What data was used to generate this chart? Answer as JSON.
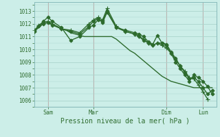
{
  "bg_color": "#cceee8",
  "grid_color": "#aad4cc",
  "line_color": "#2d6b2d",
  "xlabel": "Pression niveau de la mer( hPa )",
  "ylim": [
    1005.5,
    1013.7
  ],
  "yticks": [
    1006,
    1007,
    1008,
    1009,
    1010,
    1011,
    1012,
    1013
  ],
  "xlim": [
    0,
    20
  ],
  "vline_positions": [
    1.5,
    6.5,
    14.5,
    18.5
  ],
  "xtick_positions": [
    1.5,
    6.5,
    14.5,
    18.5
  ],
  "xtick_labels": [
    "Sam",
    "Mar",
    "Dim",
    "Lun"
  ],
  "series": [
    {
      "x": [
        0,
        0.5,
        1,
        1.5,
        2,
        2.5,
        3,
        3.5,
        4,
        4.5,
        5,
        5.5,
        6,
        6.5,
        7,
        7.5,
        8,
        8.5,
        9,
        9.5,
        10,
        10.5,
        11,
        11.5,
        12,
        12.5,
        13,
        13.5,
        14,
        14.5,
        15,
        15.5,
        16,
        16.5,
        17,
        17.5,
        18,
        18.5,
        19,
        19.5
      ],
      "y": [
        1011.4,
        1011.7,
        1012.0,
        1012.1,
        1011.9,
        1011.8,
        1011.6,
        1011.5,
        1011.3,
        1011.2,
        1011.1,
        1011.0,
        1011.0,
        1011.0,
        1011.0,
        1011.0,
        1011.0,
        1011.0,
        1010.8,
        1010.5,
        1010.2,
        1009.9,
        1009.7,
        1009.4,
        1009.1,
        1008.8,
        1008.5,
        1008.2,
        1007.9,
        1007.7,
        1007.5,
        1007.4,
        1007.3,
        1007.2,
        1007.1,
        1007.0,
        1007.0,
        1007.0,
        1007.0,
        1007.0
      ],
      "marker": null,
      "linewidth": 1.0
    },
    {
      "x": [
        0,
        0.5,
        1,
        1.5,
        2,
        3,
        4,
        5,
        6,
        6.5,
        7,
        7.5,
        8,
        9,
        10,
        11,
        11.5,
        12,
        12.5,
        13,
        13.5,
        14,
        14.5,
        15,
        15.5,
        16,
        16.5,
        17,
        17.5,
        18,
        18.5,
        19,
        19.5
      ],
      "y": [
        1011.4,
        1011.8,
        1012.2,
        1012.5,
        1012.2,
        1011.7,
        1010.7,
        1011.0,
        1011.7,
        1011.9,
        1012.3,
        1012.2,
        1013.0,
        1011.7,
        1011.5,
        1011.3,
        1011.2,
        1011.0,
        1010.6,
        1010.4,
        1011.1,
        1010.5,
        1010.3,
        1009.7,
        1009.0,
        1008.5,
        1008.0,
        1007.5,
        1008.0,
        1007.8,
        1007.5,
        1007.1,
        1006.5
      ],
      "marker": "D",
      "markersize": 2.5,
      "linewidth": 1.0
    },
    {
      "x": [
        0,
        0.5,
        1,
        1.5,
        2,
        3,
        4,
        5,
        6,
        6.5,
        7,
        7.5,
        8,
        9,
        10,
        11,
        11.5,
        12,
        12.5,
        13,
        13.5,
        14,
        14.5,
        15,
        15.5,
        16,
        16.5,
        17,
        17.5,
        18,
        18.5,
        19
      ],
      "y": [
        1011.4,
        1011.9,
        1012.1,
        1012.2,
        1012.0,
        1011.6,
        1011.5,
        1011.3,
        1012.0,
        1012.3,
        1012.5,
        1012.3,
        1013.2,
        1011.8,
        1011.4,
        1011.2,
        1011.0,
        1010.8,
        1010.5,
        1010.3,
        1010.5,
        1010.3,
        1010.1,
        1009.7,
        1009.2,
        1008.7,
        1008.3,
        1007.8,
        1007.7,
        1007.2,
        1006.7,
        1006.1
      ],
      "marker": "+",
      "markersize": 5,
      "linewidth": 1.0
    },
    {
      "x": [
        0,
        0.5,
        1,
        1.5,
        2,
        3,
        4,
        5,
        6,
        6.5,
        7,
        7.5,
        8,
        9,
        10,
        11,
        11.5,
        12,
        12.5,
        13,
        13.5,
        14,
        14.5,
        15,
        15.5,
        16,
        16.5,
        17,
        17.5,
        18,
        18.5,
        19,
        19.5
      ],
      "y": [
        1011.5,
        1011.8,
        1012.0,
        1012.1,
        1011.9,
        1011.6,
        1011.4,
        1011.2,
        1011.8,
        1012.2,
        1012.4,
        1012.1,
        1012.9,
        1011.7,
        1011.4,
        1011.2,
        1011.0,
        1010.7,
        1010.5,
        1010.3,
        1010.5,
        1010.5,
        1010.4,
        1009.8,
        1009.3,
        1008.7,
        1008.2,
        1007.7,
        1007.8,
        1007.5,
        1007.0,
        1006.5,
        1006.8
      ],
      "marker": "D",
      "markersize": 2.5,
      "linewidth": 1.0
    }
  ]
}
